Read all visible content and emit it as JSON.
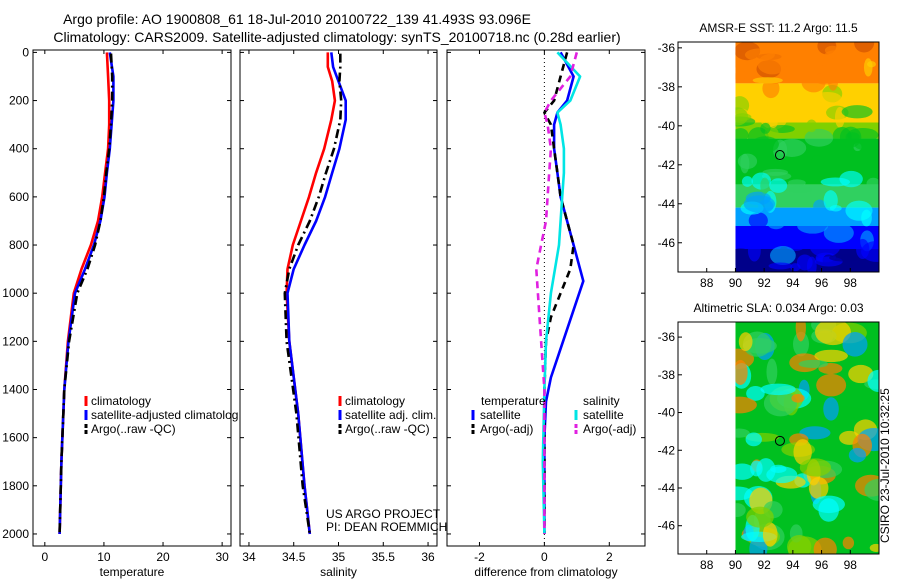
{
  "header": {
    "line1": "Argo profile: AO 1900808_61 18-Jul-2010 20100722_139 41.493S 93.096E",
    "line2": "Climatology: CARS2009. Satellite-adjusted climatology: synTS_20100718.nc (0.28d earlier)"
  },
  "colors": {
    "climatology": "#ff0000",
    "satellite": "#0000ff",
    "argo": "#000000",
    "satellite_salinity": "#00e5e5",
    "argo_salinity_adj": "#e020e0"
  },
  "credits": {
    "project": "US ARGO PROJECT",
    "pi": "PI: DEAN ROEMMICH",
    "stamp": "CSIRO 23-Jul-2010 10:32:25"
  },
  "chart_data": [
    {
      "type": "line",
      "id": "temperature",
      "title": "",
      "xlabel": "temperature",
      "ylabel": "",
      "xlim": [
        -2,
        31.5
      ],
      "ylim": [
        2050,
        -10
      ],
      "xticks": [
        0,
        10,
        20,
        30
      ],
      "yticks": [
        0,
        200,
        400,
        600,
        800,
        1000,
        1200,
        1400,
        1600,
        1800,
        2000
      ],
      "legend": [
        "climatology",
        "satellite-adjusted climatology",
        "Argo(..raw -QC)"
      ],
      "legend_position": "lower-center",
      "series": [
        {
          "name": "climatology",
          "color": "#ff0000",
          "dash": "solid",
          "x": [
            10.5,
            10.7,
            10.9,
            10.9,
            10.7,
            10.2,
            9.7,
            9.0,
            7.8,
            6.2,
            4.9,
            3.9,
            3.3,
            2.8,
            2.5
          ],
          "y": [
            0,
            100,
            200,
            300,
            400,
            500,
            600,
            700,
            800,
            900,
            1000,
            1200,
            1400,
            1700,
            2000
          ]
        },
        {
          "name": "satellite-adjusted climatology",
          "color": "#0000ff",
          "dash": "solid",
          "x": [
            11.0,
            11.6,
            11.6,
            11.3,
            11.0,
            10.5,
            10.1,
            9.4,
            8.3,
            6.8,
            5.1,
            4.0,
            3.3,
            2.8,
            2.5
          ],
          "y": [
            0,
            100,
            200,
            300,
            400,
            500,
            600,
            700,
            800,
            900,
            1000,
            1200,
            1400,
            1700,
            2000
          ]
        },
        {
          "name": "Argo(..raw -QC)",
          "color": "#000000",
          "dash": "dashdot",
          "x": [
            11.2,
            11.4,
            11.4,
            11.2,
            10.9,
            10.4,
            10.0,
            9.4,
            8.5,
            7.2,
            5.5,
            4.1,
            3.3,
            2.8,
            2.5
          ],
          "y": [
            5,
            100,
            200,
            300,
            400,
            500,
            600,
            700,
            800,
            900,
            1000,
            1200,
            1400,
            1700,
            2000
          ]
        }
      ]
    },
    {
      "type": "line",
      "id": "salinity",
      "title": "",
      "xlabel": "salinity",
      "ylabel": "",
      "xlim": [
        33.9,
        36.1
      ],
      "ylim": [
        2050,
        -10
      ],
      "xticks": [
        34,
        34.5,
        35,
        35.5,
        36
      ],
      "yticks": [
        0,
        200,
        400,
        600,
        800,
        1000,
        1200,
        1400,
        1600,
        1800,
        2000
      ],
      "legend": [
        "climatology",
        "satellite adj. clim.",
        "Argo(..raw -QC)"
      ],
      "legend_position": "lower-right",
      "series": [
        {
          "name": "climatology",
          "color": "#ff0000",
          "dash": "solid",
          "x": [
            34.88,
            34.88,
            34.93,
            34.96,
            34.92,
            34.84,
            34.75,
            34.67,
            34.58,
            34.49,
            34.43,
            34.42,
            34.45,
            34.55,
            34.62,
            34.65,
            34.68
          ],
          "y": [
            0,
            60,
            120,
            200,
            280,
            400,
            500,
            600,
            700,
            800,
            900,
            1000,
            1200,
            1500,
            1800,
            1900,
            2000
          ]
        },
        {
          "name": "satellite adj. clim.",
          "color": "#0000ff",
          "dash": "solid",
          "x": [
            34.92,
            34.94,
            35.0,
            35.08,
            35.08,
            35.01,
            34.93,
            34.85,
            34.75,
            34.62,
            34.5,
            34.43,
            34.45,
            34.55,
            34.62,
            34.65,
            34.68
          ],
          "y": [
            0,
            60,
            120,
            200,
            280,
            400,
            500,
            600,
            700,
            800,
            900,
            1000,
            1200,
            1500,
            1800,
            1900,
            2000
          ]
        },
        {
          "name": "Argo(..raw -QC)",
          "color": "#000000",
          "dash": "dashdot",
          "x": [
            35.02,
            35.02,
            35.01,
            35.03,
            35.02,
            34.95,
            34.86,
            34.78,
            34.68,
            34.55,
            34.45,
            34.4,
            34.42,
            34.53,
            34.6,
            34.64,
            34.68
          ],
          "y": [
            5,
            60,
            120,
            200,
            280,
            400,
            500,
            600,
            700,
            800,
            900,
            1000,
            1200,
            1500,
            1800,
            1900,
            2000
          ]
        }
      ]
    },
    {
      "type": "line",
      "id": "difference",
      "title": "",
      "xlabel": "difference from climatology",
      "ylabel": "",
      "xlim": [
        -3,
        3.1
      ],
      "ylim": [
        2050,
        -10
      ],
      "xticks": [
        -2,
        0,
        2
      ],
      "yticks": [
        0,
        200,
        400,
        600,
        800,
        1000,
        1200,
        1400,
        1600,
        1800,
        2000
      ],
      "legend_groups": [
        {
          "heading": "temperature",
          "entries": [
            "satellite",
            "Argo(-adj)"
          ]
        },
        {
          "heading": "salinity",
          "entries": [
            "satellite",
            "Argo(-adj)"
          ]
        }
      ],
      "legend_position": "lower-center",
      "series": [
        {
          "name": "temperature satellite",
          "color": "#0000ff",
          "dash": "solid",
          "x": [
            0.5,
            0.9,
            0.7,
            0.4,
            0.3,
            0.3,
            0.4,
            0.5,
            0.7,
            0.9,
            1.1,
            1.2,
            0.95,
            0.7,
            0.45,
            0.2,
            0.05,
            0.0,
            0.0,
            0.0
          ],
          "y": [
            0,
            100,
            200,
            250,
            300,
            400,
            500,
            600,
            700,
            800,
            900,
            950,
            1050,
            1150,
            1250,
            1350,
            1450,
            1600,
            1800,
            2000
          ]
        },
        {
          "name": "temperature Argo(-adj)",
          "color": "#000000",
          "dash": "dashed",
          "x": [
            0.7,
            0.5,
            0.3,
            0.0,
            0.2,
            0.3,
            0.4,
            0.5,
            0.7,
            0.9,
            0.8,
            0.5,
            0.2,
            0.05,
            0.0,
            0.0
          ],
          "y": [
            0,
            100,
            200,
            250,
            300,
            400,
            500,
            600,
            700,
            800,
            900,
            1000,
            1100,
            1200,
            1400,
            2000
          ]
        },
        {
          "name": "salinity satellite",
          "color": "#00e5e5",
          "dash": "solid",
          "x": [
            0.4,
            1.1,
            0.8,
            0.4,
            0.5,
            0.6,
            0.6,
            0.55,
            0.5,
            0.45,
            0.2,
            0.05,
            0.0,
            -0.05,
            0.0
          ],
          "y": [
            0,
            100,
            200,
            250,
            300,
            400,
            500,
            600,
            700,
            800,
            1000,
            1200,
            1400,
            1700,
            2000
          ]
        },
        {
          "name": "salinity Argo(-adj)",
          "color": "#e020e0",
          "dash": "dashed",
          "x": [
            1.0,
            0.8,
            0.2,
            0.0,
            0.1,
            0.2,
            0.15,
            0.1,
            0.05,
            -0.1,
            -0.25,
            -0.15,
            0.0,
            0.0,
            0.0
          ],
          "y": [
            0,
            100,
            200,
            250,
            300,
            400,
            500,
            600,
            700,
            800,
            900,
            1100,
            1400,
            1700,
            2000
          ]
        }
      ]
    },
    {
      "type": "heatmap",
      "id": "sst-map",
      "title": "AMSR-E SST: 11.2 Argo: 11.5",
      "xlim": [
        86,
        100
      ],
      "ylim": [
        -47.5,
        -35.7
      ],
      "xticks": [
        88,
        90,
        92,
        94,
        96,
        98
      ],
      "yticks": [
        -36,
        -38,
        -40,
        -42,
        -44,
        -46
      ],
      "data_xlim": [
        90,
        100
      ],
      "marker": {
        "lon": 93.1,
        "lat": -41.5
      },
      "colormap": [
        "#00008b",
        "#0000ff",
        "#00a0ff",
        "#00ffff",
        "#30d060",
        "#00c020",
        "#80d000",
        "#ffd000",
        "#ff8000",
        "#d05000"
      ]
    },
    {
      "type": "heatmap",
      "id": "sla-map",
      "title": "Altimetric SLA: 0.034 Argo: 0.03",
      "xlim": [
        86,
        100
      ],
      "ylim": [
        -47.5,
        -35.2
      ],
      "xticks": [
        88,
        90,
        92,
        94,
        96,
        98
      ],
      "yticks": [
        -36,
        -38,
        -40,
        -42,
        -44,
        -46
      ],
      "data_xlim": [
        90,
        100
      ],
      "marker": {
        "lon": 93.1,
        "lat": -41.5
      },
      "colormap": [
        "#00a0ff",
        "#00ffff",
        "#30d060",
        "#00c020",
        "#80d000",
        "#ffd000",
        "#ff8000"
      ]
    }
  ]
}
